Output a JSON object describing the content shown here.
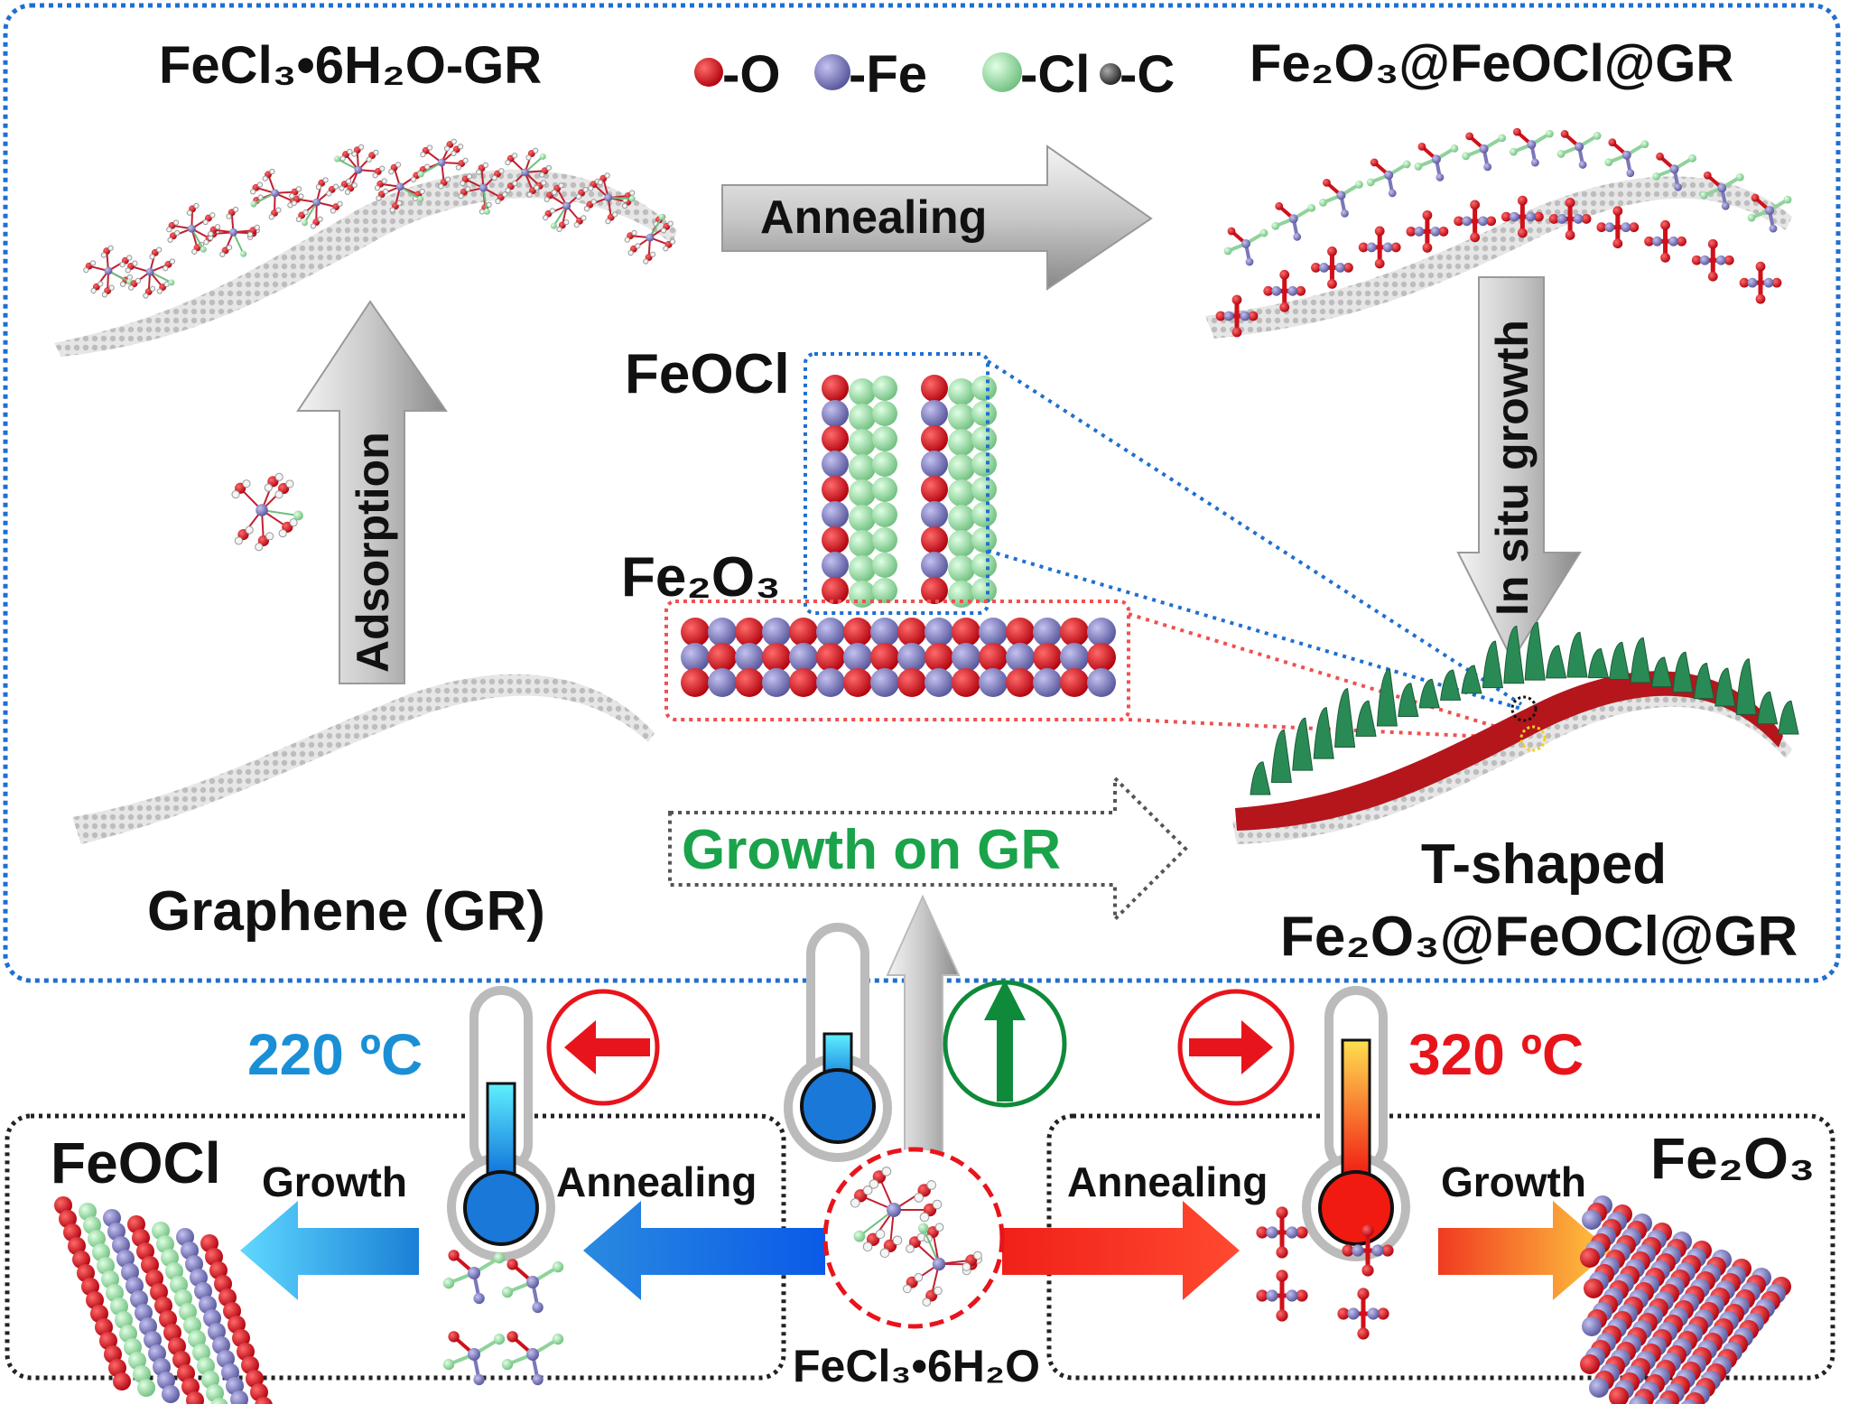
{
  "top": {
    "left_title": "FeCl₃•6H₂O-GR",
    "right_title": "Fe₂O₃@FeOCl@GR",
    "legend": [
      {
        "label": "-O",
        "color": "#d0101a"
      },
      {
        "label": "-Fe",
        "color": "#7a78b8"
      },
      {
        "label": "-Cl",
        "color": "#8fd39a"
      },
      {
        "label": "-C",
        "color": "#555555"
      }
    ],
    "annealing_label": "Annealing",
    "adsorption_label": "Adsorption",
    "in_situ_label": "In situ growth",
    "feocl_label": "FeOCl",
    "fe2o3_label": "Fe₂O₃",
    "graphene_label": "Graphene (GR)",
    "growth_on_gr_label": "Growth on GR",
    "t_shaped_label": "T-shaped",
    "t_shaped_formula": "Fe₂O₃@FeOCl@GR"
  },
  "bottom": {
    "low_temp": "220 ºC",
    "high_temp": "320 ºC",
    "feocl_label": "FeOCl",
    "fe2o3_label": "Fe₂O₃",
    "growth_left": "Growth",
    "annealing_left": "Annealing",
    "annealing_right": "Annealing",
    "growth_right": "Growth",
    "precursor_label": "FeCl₃•6H₂O"
  },
  "colors": {
    "frame_blue": "#1f6fd0",
    "cold_blue": "#1a8fd6",
    "hot_red": "#e8141c",
    "growth_green": "#1aa34a",
    "up_arrow_green": "#0f8a3a",
    "platelet_green": "#2a8a55"
  }
}
